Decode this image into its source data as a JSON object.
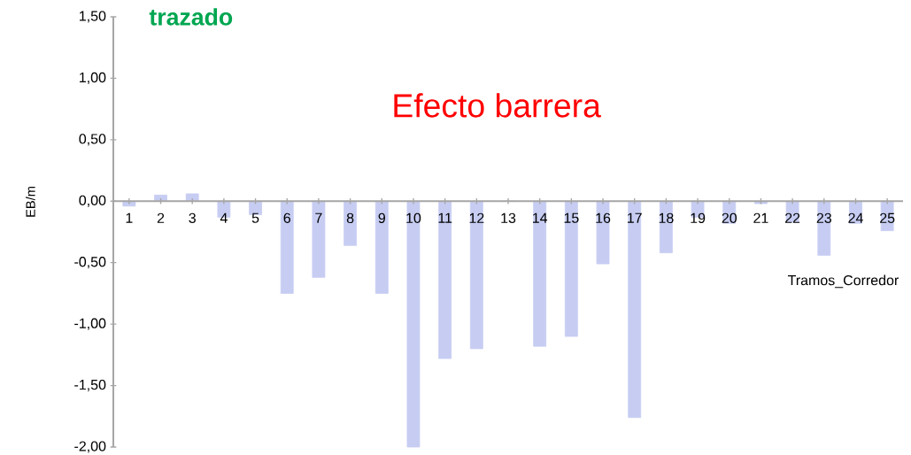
{
  "chart_data": {
    "type": "bar",
    "title": "Efecto barrera",
    "xlabel": "Tramos_Corredor",
    "ylabel": "EB/m",
    "annotations": [
      "trazado"
    ],
    "categories": [
      "1",
      "2",
      "3",
      "4",
      "5",
      "6",
      "7",
      "8",
      "9",
      "10",
      "11",
      "12",
      "13",
      "14",
      "15",
      "16",
      "17",
      "18",
      "19",
      "20",
      "21",
      "22",
      "23",
      "24",
      "25"
    ],
    "values": [
      -0.04,
      0.05,
      0.06,
      -0.13,
      -0.11,
      -0.75,
      -0.62,
      -0.36,
      -0.75,
      -2.0,
      -1.28,
      -1.2,
      0,
      -1.18,
      -1.1,
      -0.51,
      -1.76,
      -0.42,
      -0.13,
      -0.18,
      -0.02,
      -0.17,
      -0.44,
      -0.18,
      -0.24
    ],
    "color": "#c7cdf2",
    "ylim": [
      -2.0,
      1.5
    ],
    "yticks": [
      {
        "value": -2.0,
        "label": "-2,00"
      },
      {
        "value": -1.5,
        "label": "-1,50"
      },
      {
        "value": -1.0,
        "label": "-1,00"
      },
      {
        "value": -0.5,
        "label": "-0,50"
      },
      {
        "value": 0.0,
        "label": "0,00"
      },
      {
        "value": 0.5,
        "label": "0,50"
      },
      {
        "value": 1.0,
        "label": "1,00"
      },
      {
        "value": 1.5,
        "label": "1,50"
      }
    ]
  }
}
